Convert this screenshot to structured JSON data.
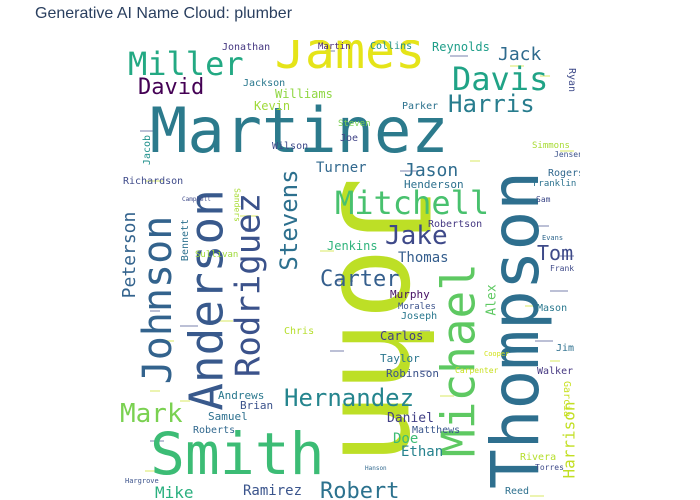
{
  "title": "Generative AI Name Cloud: plumber",
  "chart_data": {
    "type": "wordcloud",
    "title": "Generative AI Name Cloud: plumber",
    "words": [
      {
        "text": "Martinez",
        "color": "#2c7a8c"
      },
      {
        "text": "John",
        "color": "#bddf26"
      },
      {
        "text": "Smith",
        "color": "#3cbc75"
      },
      {
        "text": "Thompson",
        "color": "#2e6f8e"
      },
      {
        "text": "James",
        "color": "#e5e419"
      },
      {
        "text": "Michael",
        "color": "#5ec962"
      },
      {
        "text": "Anderson",
        "color": "#38598c"
      },
      {
        "text": "Johnson",
        "color": "#33638d"
      },
      {
        "text": "Rodriguez",
        "color": "#3b528b"
      },
      {
        "text": "Miller",
        "color": "#23a983"
      },
      {
        "text": "Davis",
        "color": "#20a386"
      },
      {
        "text": "Mitchell",
        "color": "#48c16e"
      },
      {
        "text": "Harris",
        "color": "#287d8e"
      },
      {
        "text": "Stevens",
        "color": "#2d708e"
      },
      {
        "text": "Hernandez",
        "color": "#25858e"
      },
      {
        "text": "Jake",
        "color": "#3e4989"
      },
      {
        "text": "David",
        "color": "#440154"
      },
      {
        "text": "Robert",
        "color": "#2c728e"
      },
      {
        "text": "Mark",
        "color": "#7ad151"
      },
      {
        "text": "Carter",
        "color": "#355f8d"
      },
      {
        "text": "Harrison",
        "color": "#c2df23"
      },
      {
        "text": "Peterson",
        "color": "#33638d"
      },
      {
        "text": "Jason",
        "color": "#2f6c8e"
      },
      {
        "text": "Tom",
        "color": "#3e4a89"
      },
      {
        "text": "Jack",
        "color": "#2f6b8e"
      },
      {
        "text": "Thomas",
        "color": "#355e8d"
      },
      {
        "text": "Ramirez",
        "color": "#3a548c"
      },
      {
        "text": "Mike",
        "color": "#2ab07f"
      },
      {
        "text": "Ethan",
        "color": "#26828e"
      },
      {
        "text": "Doe",
        "color": "#3dbc74"
      },
      {
        "text": "Daniel",
        "color": "#424086"
      },
      {
        "text": "Turner",
        "color": "#31688e"
      },
      {
        "text": "Jenkins",
        "color": "#2fb47c"
      },
      {
        "text": "Bennett",
        "color": "#2d718e"
      },
      {
        "text": "Alex",
        "color": "#5ec962"
      },
      {
        "text": "Williams",
        "color": "#90d743"
      },
      {
        "text": "Kevin",
        "color": "#9fda3a"
      },
      {
        "text": "Jackson",
        "color": "#2a788e"
      },
      {
        "text": "Taylor",
        "color": "#2a768e"
      },
      {
        "text": "Samuel",
        "color": "#2d708e"
      },
      {
        "text": "Brian",
        "color": "#3b528b"
      },
      {
        "text": "Reynolds",
        "color": "#1f9e89"
      },
      {
        "text": "Matthews",
        "color": "#39568c"
      },
      {
        "text": "Robinson",
        "color": "#3b528b"
      },
      {
        "text": "Andrews",
        "color": "#2a788e"
      },
      {
        "text": "Roberts",
        "color": "#31688e"
      },
      {
        "text": "Henderson",
        "color": "#2d708e"
      },
      {
        "text": "Jacob",
        "color": "#21918c"
      },
      {
        "text": "Carlos",
        "color": "#424086"
      },
      {
        "text": "Murphy",
        "color": "#471365"
      },
      {
        "text": "Joseph",
        "color": "#2a788e"
      },
      {
        "text": "Wilson",
        "color": "#3e4a89"
      },
      {
        "text": "Jonathan",
        "color": "#453781"
      },
      {
        "text": "Martin",
        "color": "#482878"
      },
      {
        "text": "Collins",
        "color": "#21918c"
      },
      {
        "text": "Parker",
        "color": "#2c728e"
      },
      {
        "text": "Ryan",
        "color": "#3e4a89"
      },
      {
        "text": "Richardson",
        "color": "#3e4a89"
      },
      {
        "text": "Robertson",
        "color": "#453882"
      },
      {
        "text": "Rogers",
        "color": "#31688e"
      },
      {
        "text": "Franklin",
        "color": "#2c728e"
      },
      {
        "text": "Simmons",
        "color": "#a8db34"
      },
      {
        "text": "Jensen",
        "color": "#3b528b"
      },
      {
        "text": "Frank",
        "color": "#3e4a89"
      },
      {
        "text": "Mason",
        "color": "#2a788e"
      },
      {
        "text": "Jim",
        "color": "#2d708e"
      },
      {
        "text": "Walker",
        "color": "#453781"
      },
      {
        "text": "Garcia",
        "color": "#c8e020"
      },
      {
        "text": "Rivera",
        "color": "#b5de2b"
      },
      {
        "text": "Torres",
        "color": "#3e4a89"
      },
      {
        "text": "Reed",
        "color": "#2d708e"
      },
      {
        "text": "Chris",
        "color": "#b5de2b"
      },
      {
        "text": "Morales",
        "color": "#3b528b"
      },
      {
        "text": "Sullivan",
        "color": "#9fda3a"
      },
      {
        "text": "Sanders",
        "color": "#a8db34"
      },
      {
        "text": "Steven",
        "color": "#7ad151"
      },
      {
        "text": "Joe",
        "color": "#414487"
      },
      {
        "text": "Sam",
        "color": "#3e4a89"
      },
      {
        "text": "Carpenter",
        "color": "#c8e020"
      },
      {
        "text": "Cooper",
        "color": "#d2e21b"
      },
      {
        "text": "Evans",
        "color": "#31688e"
      },
      {
        "text": "Hargrove",
        "color": "#3b528b"
      },
      {
        "text": "Campbell",
        "color": "#3e4a89"
      },
      {
        "text": "Hanson",
        "color": "#31688e"
      }
    ]
  }
}
